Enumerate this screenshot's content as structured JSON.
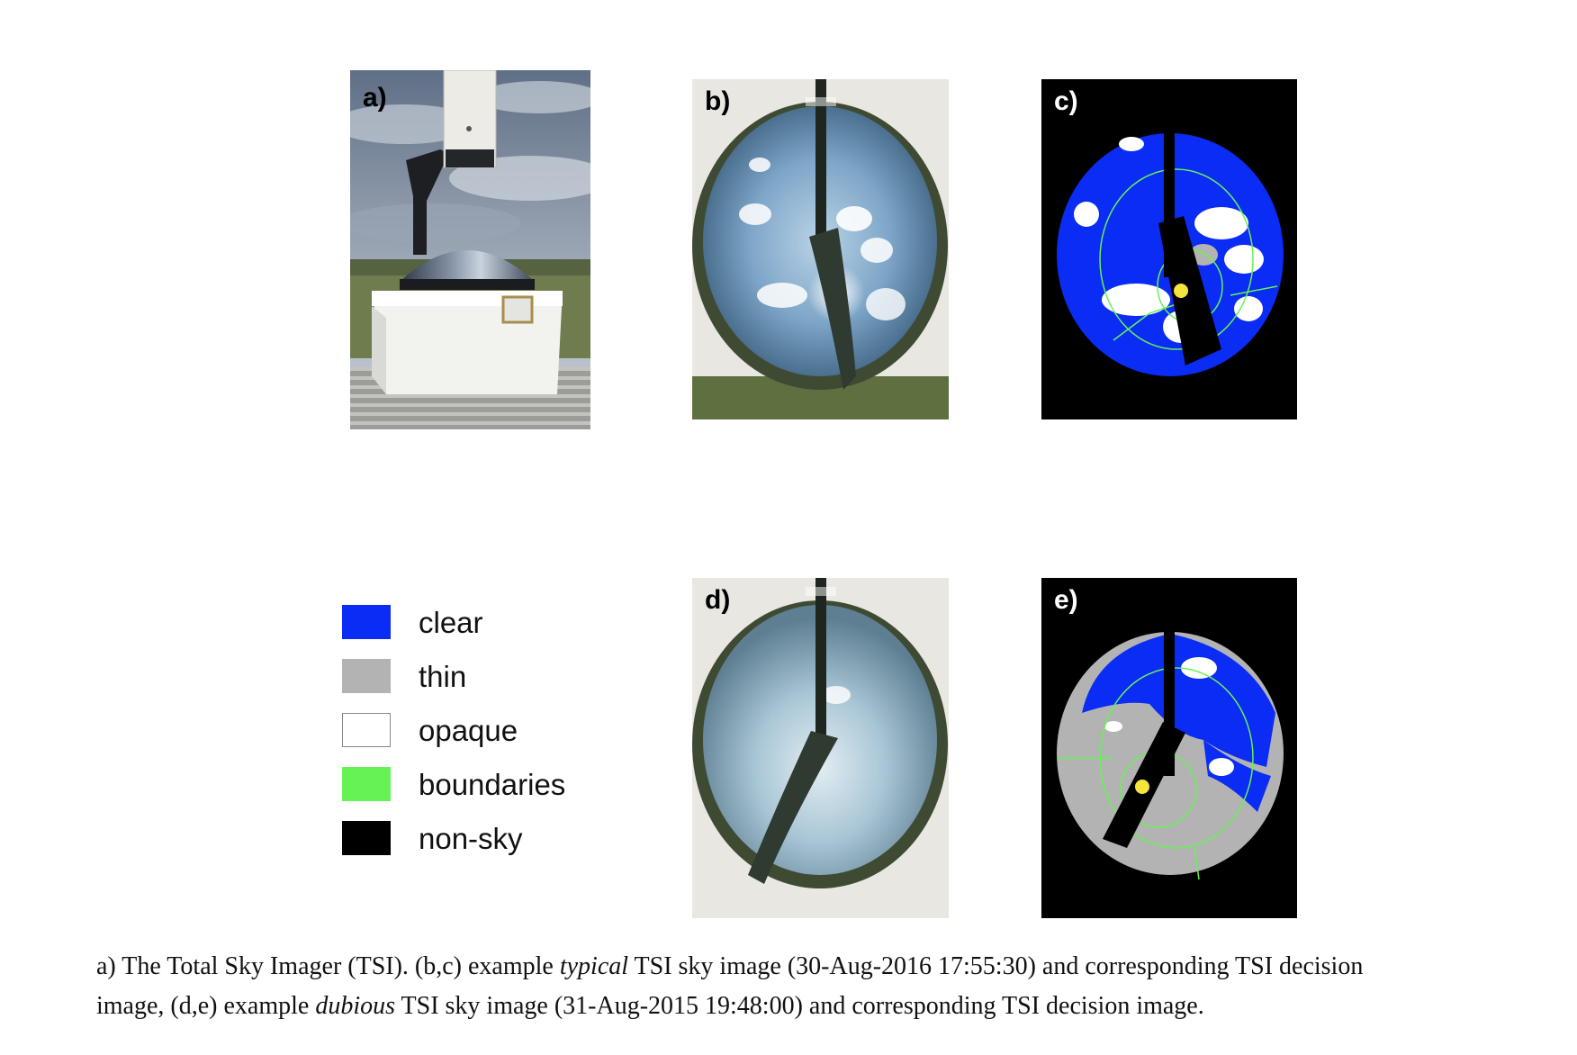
{
  "figure": {
    "panels": [
      {
        "id": "a",
        "label": "a)"
      },
      {
        "id": "b",
        "label": "b)"
      },
      {
        "id": "c",
        "label": "c)"
      },
      {
        "id": "d",
        "label": "d)"
      },
      {
        "id": "e",
        "label": "e)"
      }
    ],
    "legend": [
      {
        "label": "clear",
        "color": "#0a2cf5"
      },
      {
        "label": "thin",
        "color": "#b3b3b3"
      },
      {
        "label": "opaque",
        "color": "#ffffff"
      },
      {
        "label": "boundaries",
        "color": "#66f255"
      },
      {
        "label": "non-sky",
        "color": "#000000"
      }
    ]
  },
  "caption": {
    "line1_a": "a) The Total Sky Imager (TSI). (b,c) example ",
    "line1_em": "typical",
    "line1_b": " TSI sky image (30-Aug-2016 17:55:30) and corresponding TSI decision",
    "line2_a": "image, (d,e) example ",
    "line2_em": "dubious",
    "line2_b": " TSI sky image (31-Aug-2015 19:48:00) and corresponding TSI decision image."
  }
}
